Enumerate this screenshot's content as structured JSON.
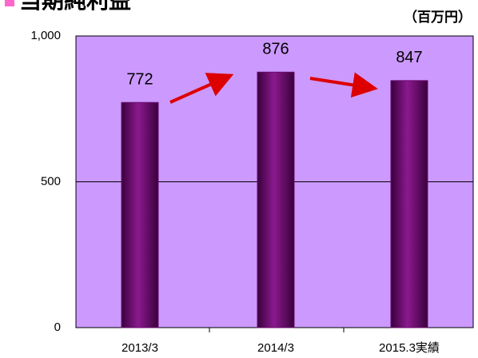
{
  "chart_data": {
    "type": "bar",
    "title": "当期純利益",
    "unit": "（百万円）",
    "categories": [
      "2013/3",
      "2014/3",
      "2015.3実績"
    ],
    "values": [
      772,
      876,
      847
    ],
    "color": "#6a0a6e",
    "background": "#cc99ff",
    "ylim": [
      0,
      1000
    ],
    "yticks": [
      0,
      500,
      {
        "value": 1000,
        "label": "1,000"
      }
    ],
    "grid": true
  }
}
